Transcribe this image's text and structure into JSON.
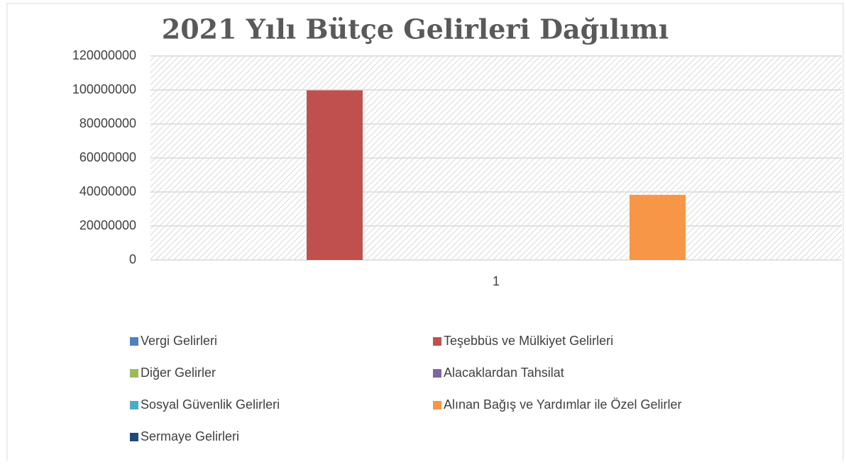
{
  "chart_data": {
    "type": "bar",
    "title": "2021 Yılı Bütçe Gelirleri Dağılımı",
    "categories": [
      "1"
    ],
    "series": [
      {
        "name": "Vergi Gelirleri",
        "color": "#4f81bd",
        "values": [
          0
        ]
      },
      {
        "name": "Teşebbüs ve Mülkiyet Gelirleri",
        "color": "#c0504d",
        "values": [
          99800000
        ]
      },
      {
        "name": "Diğer Gelirler",
        "color": "#9bbb59",
        "values": [
          0
        ]
      },
      {
        "name": "Alacaklardan Tahsilat",
        "color": "#8064a2",
        "values": [
          0
        ]
      },
      {
        "name": "Sosyal Güvenlik Gelirleri",
        "color": "#4bacc6",
        "values": [
          0
        ]
      },
      {
        "name": "Alınan Bağış ve Yardımlar ile Özel Gelirler",
        "color": "#f79646",
        "values": [
          38300000
        ]
      },
      {
        "name": "Sermaye Gelirleri",
        "color": "#1f497d",
        "values": [
          0
        ]
      }
    ],
    "ylim": [
      0,
      120000000
    ],
    "yticks": [
      0,
      20000000,
      40000000,
      60000000,
      80000000,
      100000000,
      120000000
    ],
    "grid": true,
    "legend": "bottom"
  }
}
